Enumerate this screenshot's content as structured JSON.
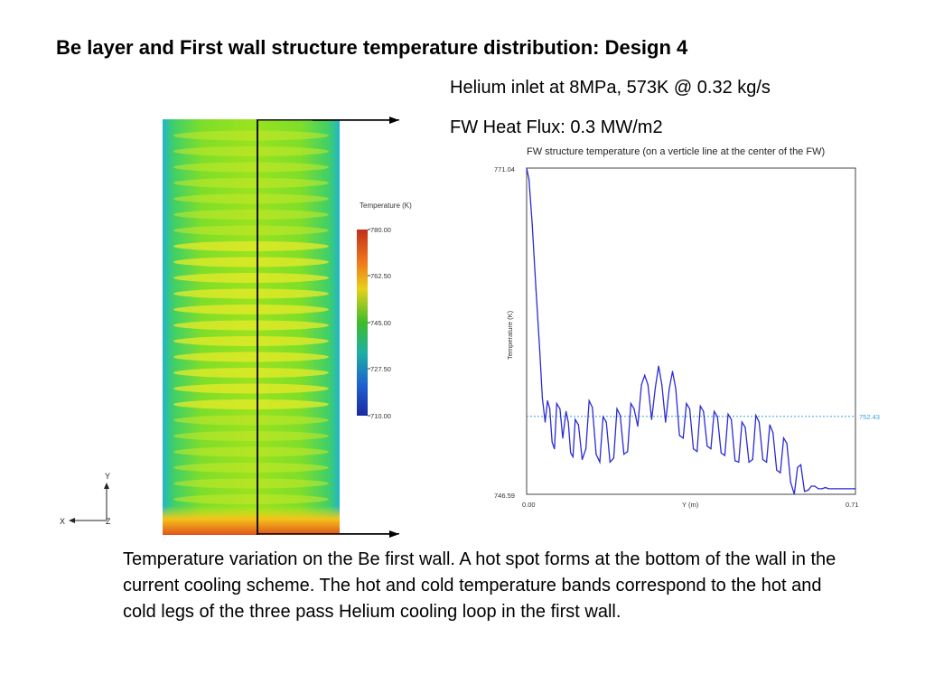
{
  "slide": {
    "title": "Be layer and First wall structure temperature distribution: Design 4",
    "subtitle_1": "Helium inlet at 8MPa, 573K @ 0.32 kg/s",
    "subtitle_2": "FW Heat Flux: 0.3 MW/m2",
    "caption": "Temperature variation on the Be first wall. A hot spot forms at the bottom of the wall in the current cooling scheme. The hot and cold temperature bands correspond to the hot and cold legs of the three pass Helium cooling loop in the first wall."
  },
  "contour": {
    "legend_title": "Temperature (K)",
    "legend_ticks": [
      "780.00",
      "762.50",
      "745.00",
      "727.50",
      "710.00"
    ],
    "axis_y": "Y",
    "axis_x": "X",
    "axis_z": "Z"
  },
  "chart_data": {
    "type": "line",
    "title": "FW structure temperature (on a verticle line at the center of the FW)",
    "xlabel": "Y (m)",
    "ylabel": "Temperature (K)",
    "xlim": [
      0.0,
      0.71
    ],
    "ylim": [
      746.59,
      771.04
    ],
    "x_tick_labels": [
      "0.00",
      "0.71"
    ],
    "y_tick_labels": [
      "771.04",
      "746.59"
    ],
    "mean_line_label": "752.43",
    "mean_line_value": 752.43,
    "colors": {
      "series": "#2b2bd6",
      "mean_line": "#3fa0e0"
    },
    "series": [
      {
        "x": [
          0.0,
          0.005,
          0.012,
          0.02,
          0.028,
          0.034,
          0.04,
          0.045,
          0.05,
          0.055,
          0.06,
          0.065,
          0.072,
          0.078,
          0.085,
          0.09,
          0.095,
          0.1,
          0.105,
          0.112,
          0.12,
          0.128,
          0.135,
          0.142,
          0.15,
          0.158,
          0.165,
          0.172,
          0.18,
          0.188,
          0.195,
          0.202,
          0.21,
          0.218,
          0.225,
          0.232,
          0.24,
          0.248,
          0.255,
          0.262,
          0.27,
          0.278,
          0.285,
          0.292,
          0.3,
          0.308,
          0.315,
          0.322,
          0.33,
          0.338,
          0.345,
          0.352,
          0.36,
          0.368,
          0.375,
          0.382,
          0.39,
          0.398,
          0.405,
          0.412,
          0.42,
          0.428,
          0.435,
          0.442,
          0.45,
          0.458,
          0.465,
          0.472,
          0.48,
          0.488,
          0.495,
          0.502,
          0.51,
          0.518,
          0.525,
          0.532,
          0.54,
          0.548,
          0.555,
          0.562,
          0.57,
          0.578,
          0.585,
          0.592,
          0.6,
          0.608,
          0.615,
          0.622,
          0.63,
          0.638,
          0.645,
          0.652,
          0.66,
          0.668,
          0.675,
          0.682,
          0.69,
          0.698,
          0.705,
          0.71
        ],
        "y": [
          771.04,
          770.2,
          766.8,
          762.0,
          757.5,
          753.8,
          752.0,
          753.6,
          753.0,
          750.5,
          750.0,
          753.4,
          753.0,
          750.8,
          752.8,
          752.0,
          749.7,
          749.4,
          752.2,
          751.8,
          749.2,
          750.0,
          753.6,
          753.1,
          749.6,
          749.0,
          752.4,
          752.0,
          749.0,
          749.3,
          753.0,
          752.5,
          749.6,
          749.8,
          753.4,
          753.0,
          751.7,
          754.8,
          755.5,
          754.8,
          752.2,
          754.6,
          756.2,
          754.8,
          752.0,
          754.5,
          755.8,
          754.5,
          751.0,
          750.8,
          753.4,
          753.0,
          750.0,
          749.8,
          753.2,
          752.8,
          750.2,
          750.0,
          752.8,
          752.4,
          749.7,
          749.5,
          752.6,
          752.2,
          749.1,
          749.0,
          752.0,
          751.6,
          749.0,
          749.2,
          752.5,
          752.0,
          749.2,
          749.0,
          751.8,
          751.2,
          748.4,
          748.2,
          750.8,
          750.4,
          747.5,
          746.6,
          748.6,
          748.8,
          746.8,
          746.9,
          747.2,
          747.2,
          747.0,
          747.0,
          747.1,
          747.0,
          747.0,
          747.0,
          747.0,
          747.0,
          747.0,
          747.0,
          747.0,
          747.0
        ]
      }
    ]
  }
}
